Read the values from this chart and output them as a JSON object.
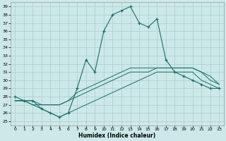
{
  "xlabel": "Humidex (Indice chaleur)",
  "xlim": [
    -0.5,
    23.5
  ],
  "ylim": [
    24.5,
    39.5
  ],
  "yticks": [
    25,
    26,
    27,
    28,
    29,
    30,
    31,
    32,
    33,
    34,
    35,
    36,
    37,
    38,
    39
  ],
  "xticks": [
    0,
    1,
    2,
    3,
    4,
    5,
    6,
    7,
    8,
    9,
    10,
    11,
    12,
    13,
    14,
    15,
    16,
    17,
    18,
    19,
    20,
    21,
    22,
    23
  ],
  "bg_color": "#cce8e8",
  "line_color": "#1a6e6a",
  "grid_color": "#aacece",
  "main_x": [
    0,
    1,
    2,
    3,
    4,
    5,
    6,
    7,
    8,
    9,
    10,
    11,
    12,
    13,
    14,
    15,
    16,
    17,
    18,
    19,
    20,
    21,
    22,
    23
  ],
  "main_y": [
    28,
    27.5,
    27.5,
    26.5,
    26,
    25.5,
    26,
    29,
    32.5,
    31,
    36,
    38,
    38.5,
    39,
    37,
    36.5,
    37.5,
    32.5,
    31,
    30.5,
    30,
    29.5,
    29,
    29
  ],
  "flat1_x": [
    0,
    1,
    2,
    3,
    4,
    5,
    6,
    7,
    8,
    9,
    10,
    11,
    12,
    13,
    14,
    15,
    16,
    17,
    18,
    19,
    20,
    21,
    22,
    23
  ],
  "flat1_y": [
    27.5,
    27.5,
    27,
    26.5,
    26,
    25.5,
    26,
    26.5,
    27,
    27.5,
    28,
    28.5,
    29,
    29.5,
    30,
    30.5,
    31,
    31,
    31,
    31,
    31,
    30,
    29.5,
    29
  ],
  "flat2_x": [
    0,
    1,
    2,
    3,
    4,
    5,
    6,
    7,
    8,
    9,
    10,
    11,
    12,
    13,
    14,
    15,
    16,
    17,
    18,
    19,
    20,
    21,
    22,
    23
  ],
  "flat2_y": [
    27.5,
    27.5,
    27.5,
    27,
    27,
    27,
    27.5,
    28,
    28.5,
    29,
    29.5,
    30,
    30.5,
    31,
    31,
    31,
    31.5,
    31.5,
    31.5,
    31.5,
    31.5,
    31,
    30,
    29.5
  ],
  "flat3_x": [
    0,
    1,
    2,
    3,
    4,
    5,
    6,
    7,
    8,
    9,
    10,
    11,
    12,
    13,
    14,
    15,
    16,
    17,
    18,
    19,
    20,
    21,
    22,
    23
  ],
  "flat3_y": [
    27.5,
    27.5,
    27,
    27,
    27,
    27,
    27.5,
    28.5,
    29,
    29.5,
    30,
    30.5,
    31,
    31.5,
    31.5,
    31.5,
    31.5,
    31.5,
    31.5,
    31.5,
    31.5,
    31,
    30.5,
    29.5
  ]
}
